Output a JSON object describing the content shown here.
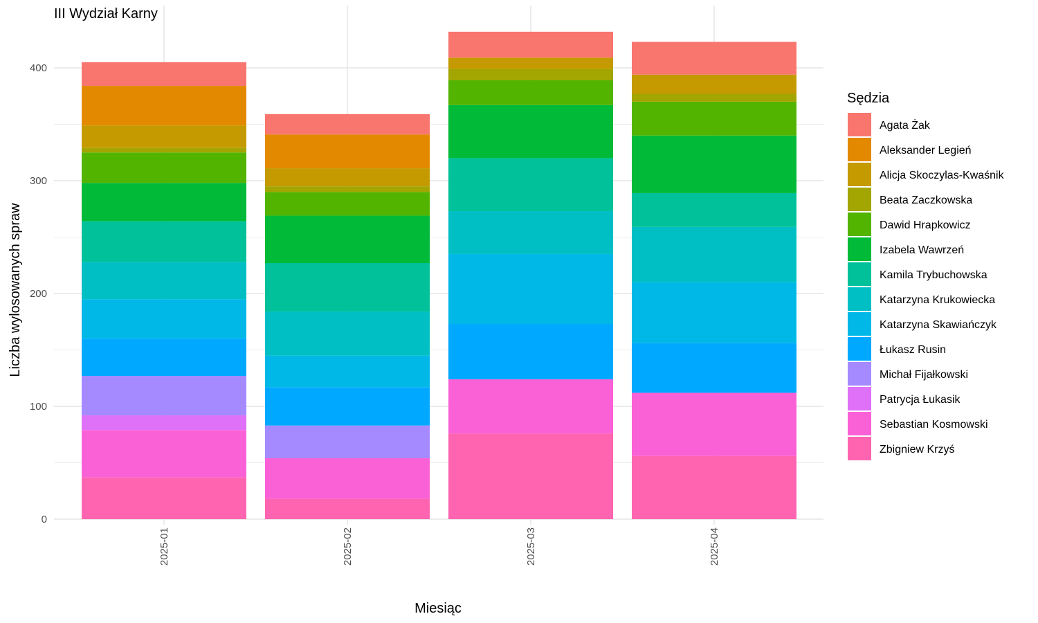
{
  "chart_data": {
    "type": "bar",
    "stacked": true,
    "title": "III Wydział Karny",
    "xlabel": "Miesiąc",
    "ylabel": "Liczba wylosowanych spraw",
    "categories": [
      "2025-01",
      "2025-02",
      "2025-03",
      "2025-04"
    ],
    "ylim": [
      0,
      440
    ],
    "yticks": [
      0,
      100,
      200,
      300,
      400
    ],
    "grid": true,
    "legend": {
      "title": "Sędzia",
      "position": "right"
    },
    "series": [
      {
        "name": "Zbigniew Krzyś",
        "color": "#FF64B0",
        "values": [
          37,
          18,
          76,
          56
        ]
      },
      {
        "name": "Sebastian Kosmowski",
        "color": "#FB61D7",
        "values": [
          42,
          36,
          48,
          56
        ]
      },
      {
        "name": "Patrycja Łukasik",
        "color": "#DF70F8",
        "values": [
          13,
          0,
          0,
          0
        ]
      },
      {
        "name": "Michał Fijałkowski",
        "color": "#A58AFF",
        "values": [
          35,
          29,
          0,
          0
        ]
      },
      {
        "name": "Łukasz Rusin",
        "color": "#00A9FF",
        "values": [
          33,
          34,
          49,
          44
        ]
      },
      {
        "name": "Katarzyna Skawiańczyk",
        "color": "#00B8E7",
        "values": [
          35,
          28,
          62,
          54
        ]
      },
      {
        "name": "Katarzyna Krukowiecka",
        "color": "#00BFC4",
        "values": [
          33,
          39,
          38,
          49
        ]
      },
      {
        "name": "Kamila Trybuchowska",
        "color": "#00C19A",
        "values": [
          36,
          43,
          47,
          30
        ]
      },
      {
        "name": "Izabela Wawrzeń",
        "color": "#00BA38",
        "values": [
          34,
          42,
          47,
          51
        ]
      },
      {
        "name": "Dawid Hrapkowicz",
        "color": "#53B400",
        "values": [
          27,
          21,
          22,
          30
        ]
      },
      {
        "name": "Beata Zaczkowska",
        "color": "#A3A500",
        "values": [
          4,
          5,
          10,
          7
        ]
      },
      {
        "name": "Alicja Skoczylas-Kwaśnik",
        "color": "#C49A00",
        "values": [
          20,
          16,
          10,
          17
        ]
      },
      {
        "name": "Aleksander Legień",
        "color": "#E38900",
        "values": [
          35,
          30,
          0,
          0
        ]
      },
      {
        "name": "Agata Żak",
        "color": "#F8766D",
        "values": [
          21,
          18,
          23,
          29
        ]
      }
    ],
    "legend_order": [
      "Agata Żak",
      "Aleksander Legień",
      "Alicja Skoczylas-Kwaśnik",
      "Beata Zaczkowska",
      "Dawid Hrapkowicz",
      "Izabela Wawrzeń",
      "Kamila Trybuchowska",
      "Katarzyna Krukowiecka",
      "Katarzyna Skawiańczyk",
      "Łukasz Rusin",
      "Michał Fijałkowski",
      "Patrycja Łukasik",
      "Sebastian Kosmowski",
      "Zbigniew Krzyś"
    ]
  }
}
